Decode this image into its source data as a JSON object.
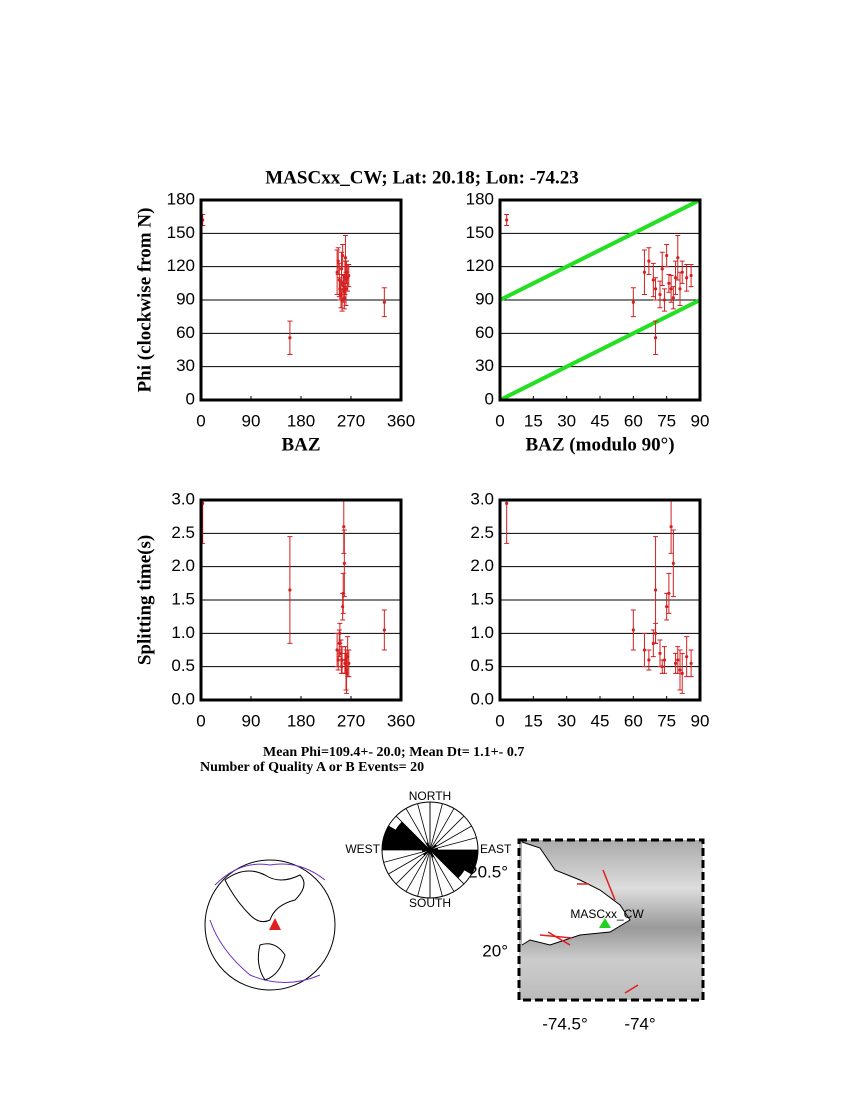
{
  "figure": {
    "title": "MASCxx_CW; Lat:  20.18;  Lon:  -74.23",
    "mean_text": "Mean Phi=109.4+- 20.0; Mean Dt=  1.1+-  0.7",
    "count_text": "Number of Quality A or B Events= 20"
  },
  "chart_data": [
    {
      "type": "errorbar",
      "ylabel": "Phi (clockwise from N)",
      "xlabel": "BAZ",
      "color": "#d42020",
      "grid": true,
      "x": [
        3,
        160,
        330,
        245,
        247,
        249,
        250,
        252,
        253,
        254,
        255,
        256,
        257,
        258,
        259,
        260,
        261,
        262,
        264,
        266
      ],
      "values": [
        162,
        56,
        88,
        115,
        125,
        108,
        100,
        95,
        118,
        90,
        130,
        105,
        100,
        92,
        110,
        128,
        100,
        115,
        110,
        112
      ],
      "errors": [
        5,
        15,
        13,
        20,
        12,
        15,
        10,
        12,
        15,
        10,
        10,
        8,
        12,
        10,
        15,
        20,
        15,
        10,
        12,
        10
      ],
      "xlim": [
        0,
        360
      ],
      "xticks": [
        0,
        90,
        180,
        270,
        360
      ],
      "ylim": [
        0,
        180
      ],
      "yticks": [
        0,
        30,
        60,
        90,
        120,
        150,
        180
      ]
    },
    {
      "type": "errorbar",
      "xlabel": "BAZ (modulo 90°)",
      "color": "#d42020",
      "grid": true,
      "x": [
        3,
        70,
        60,
        65,
        67,
        69,
        70,
        72,
        73,
        74,
        75,
        76,
        77,
        78,
        79,
        80,
        81,
        82,
        84,
        86
      ],
      "values": [
        162,
        56,
        88,
        115,
        125,
        108,
        100,
        95,
        118,
        90,
        130,
        105,
        100,
        92,
        110,
        128,
        100,
        115,
        110,
        112
      ],
      "errors": [
        5,
        15,
        13,
        20,
        12,
        15,
        10,
        12,
        15,
        10,
        10,
        8,
        12,
        10,
        15,
        20,
        15,
        10,
        12,
        10
      ],
      "lines": [
        {
          "x": [
            0,
            90
          ],
          "y": [
            0,
            90
          ],
          "color": "#22e022"
        },
        {
          "x": [
            0,
            90
          ],
          "y": [
            90,
            180
          ],
          "color": "#22e022"
        }
      ],
      "xlim": [
        0,
        90
      ],
      "xticks": [
        0,
        15,
        30,
        45,
        60,
        75,
        90
      ],
      "ylim": [
        0,
        180
      ],
      "yticks": [
        0,
        30,
        60,
        90,
        120,
        150,
        180
      ]
    },
    {
      "type": "errorbar",
      "ylabel": "Splitting time(s)",
      "color": "#d42020",
      "grid": true,
      "x": [
        3,
        160,
        330,
        245,
        247,
        249,
        250,
        252,
        253,
        254,
        255,
        256,
        257,
        258,
        259,
        260,
        261,
        262,
        264,
        266
      ],
      "values": [
        2.95,
        1.65,
        1.05,
        0.75,
        0.6,
        0.85,
        1.0,
        0.7,
        0.5,
        0.6,
        1.4,
        1.6,
        2.6,
        2.05,
        0.55,
        0.6,
        0.45,
        0.4,
        0.65,
        0.55
      ],
      "errors": [
        0.6,
        0.8,
        0.3,
        0.25,
        0.15,
        0.2,
        0.15,
        0.2,
        0.1,
        0.2,
        0.2,
        0.3,
        0.4,
        0.5,
        0.15,
        0.2,
        0.3,
        0.3,
        0.3,
        0.2
      ],
      "xlim": [
        0,
        360
      ],
      "xticks": [
        0,
        90,
        180,
        270,
        360
      ],
      "ylim": [
        0,
        3
      ],
      "yticks": [
        {
          "value": 0,
          "label": "0.0"
        },
        0.5,
        {
          "value": 1,
          "label": "1.0"
        },
        1.5,
        {
          "value": 2,
          "label": "2.0"
        },
        2.5,
        {
          "value": 3,
          "label": "3.0"
        }
      ]
    },
    {
      "type": "errorbar",
      "color": "#d42020",
      "grid": true,
      "x": [
        3,
        70,
        60,
        65,
        67,
        69,
        70,
        72,
        73,
        74,
        75,
        76,
        77,
        78,
        79,
        80,
        81,
        82,
        84,
        86
      ],
      "values": [
        2.95,
        1.65,
        1.05,
        0.75,
        0.6,
        0.85,
        1.0,
        0.7,
        0.5,
        0.6,
        1.4,
        1.6,
        2.6,
        2.05,
        0.55,
        0.6,
        0.45,
        0.4,
        0.65,
        0.55
      ],
      "errors": [
        0.6,
        0.8,
        0.3,
        0.25,
        0.15,
        0.2,
        0.15,
        0.2,
        0.1,
        0.2,
        0.2,
        0.3,
        0.4,
        0.5,
        0.15,
        0.2,
        0.3,
        0.3,
        0.3,
        0.2
      ],
      "xlim": [
        0,
        90
      ],
      "xticks": [
        0,
        15,
        30,
        45,
        60,
        75,
        90
      ],
      "ylim": [
        0,
        3
      ],
      "yticks": [
        {
          "value": 0,
          "label": "0.0"
        },
        0.5,
        {
          "value": 1,
          "label": "1.0"
        },
        1.5,
        {
          "value": 2,
          "label": "2.0"
        },
        2.5,
        {
          "value": 3,
          "label": "3.0"
        }
      ]
    },
    {
      "type": "rose",
      "color": "#000000",
      "bins": [
        0,
        15,
        30,
        45,
        60,
        75,
        90,
        105,
        120,
        135,
        150,
        165,
        180
      ],
      "counts": [
        0,
        0,
        0,
        1,
        0,
        1,
        6,
        6,
        5,
        0,
        1,
        0
      ],
      "rlim": [
        0,
        6
      ],
      "north": "NORTH",
      "west": "WEST",
      "east": "EAST",
      "south": "SOUTH"
    }
  ],
  "map": {
    "station": "MASCxx_CW",
    "lat_labels": [
      "20.5°",
      "20°"
    ],
    "lon_labels": [
      "-74.5°",
      "-74°"
    ]
  }
}
